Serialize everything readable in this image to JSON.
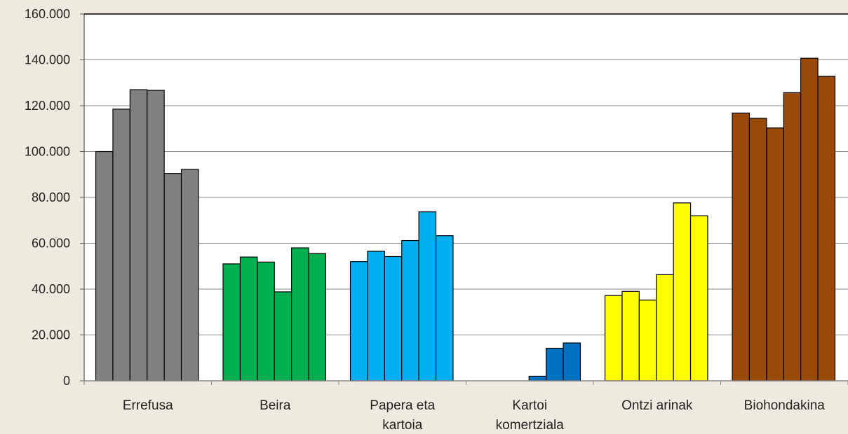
{
  "chart_data": {
    "type": "bar",
    "title": "",
    "xlabel": "",
    "ylabel": "",
    "ylim": [
      0,
      160000
    ],
    "yticks": [
      0,
      20000,
      40000,
      60000,
      80000,
      100000,
      120000,
      140000,
      160000
    ],
    "ytick_labels": [
      "0",
      "20.000",
      "40.000",
      "60.000",
      "80.000",
      "100.000",
      "120.000",
      "140.000",
      "160.000"
    ],
    "grid": true,
    "legend": "none",
    "categories": [
      [
        "Errefusa"
      ],
      [
        "Beira"
      ],
      [
        "Papera eta",
        "kartoia"
      ],
      [
        "Kartoi",
        "komertziala"
      ],
      [
        "Ontzi arinak"
      ],
      [
        "Biohondakina"
      ]
    ],
    "colors": [
      "#808080",
      "#00b050",
      "#00b0f0",
      "#0070c0",
      "#ffff00",
      "#9a4a08"
    ],
    "groups": [
      [
        100000,
        118500,
        127000,
        126700,
        90500,
        92200
      ],
      [
        51000,
        54000,
        51800,
        38800,
        58000,
        55500
      ],
      [
        52000,
        56500,
        54200,
        61200,
        73700,
        63300
      ],
      [
        0,
        0,
        0,
        2000,
        14200,
        16500
      ],
      [
        37200,
        39000,
        35200,
        46300,
        77600,
        72000
      ],
      [
        116800,
        114500,
        110300,
        125700,
        140700,
        132800
      ]
    ]
  }
}
